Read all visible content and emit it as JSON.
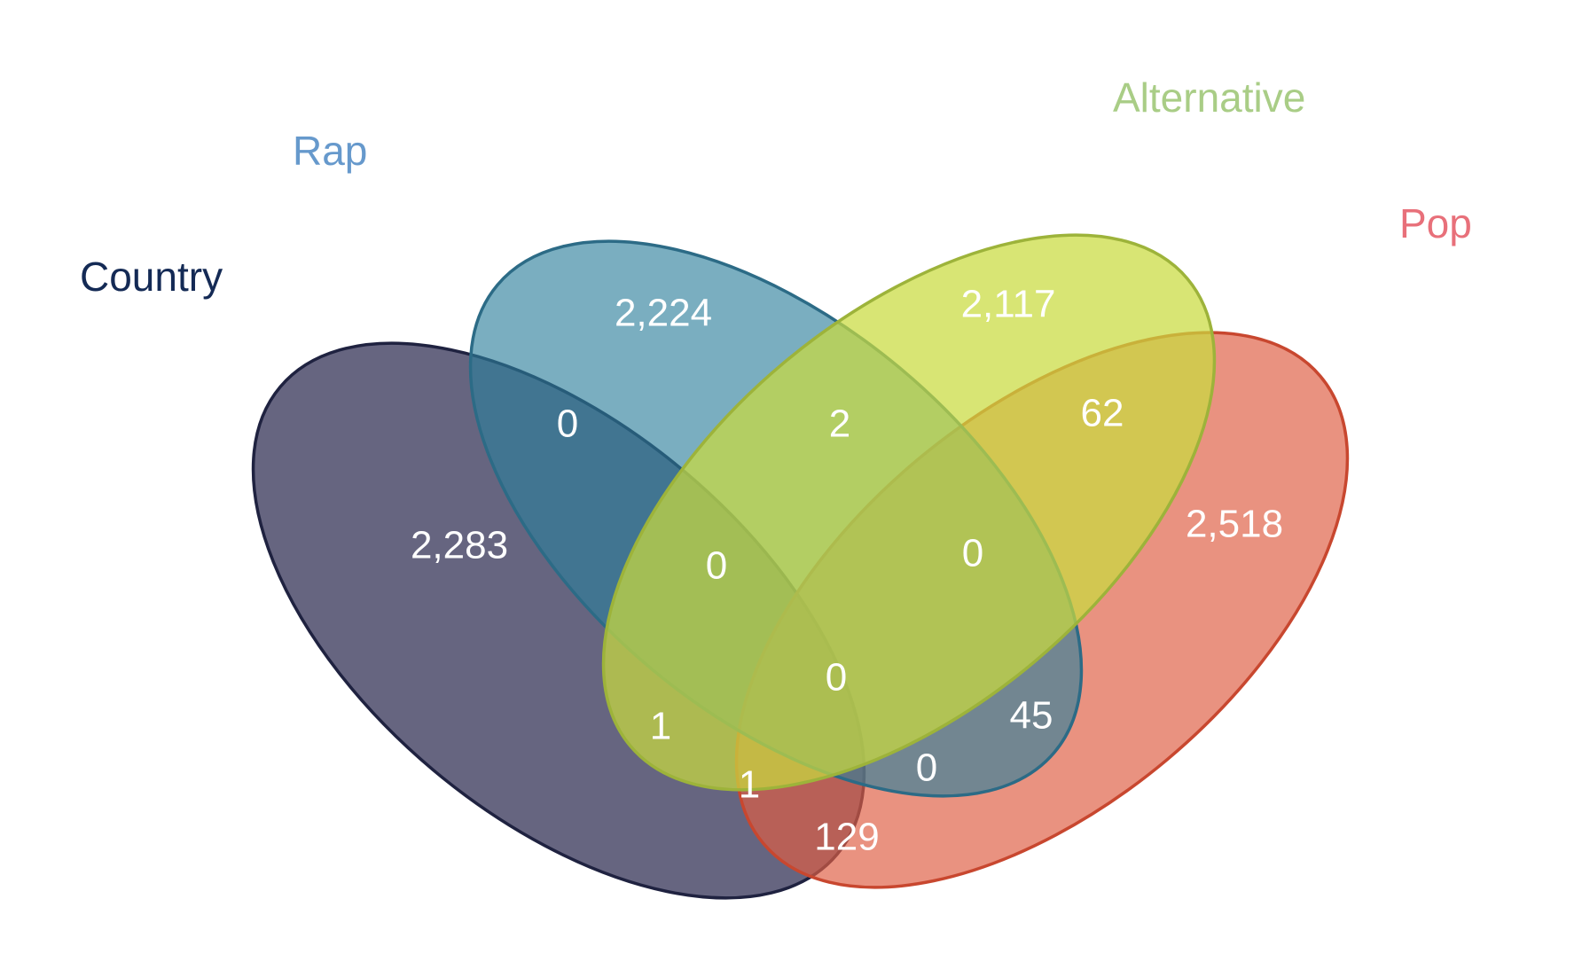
{
  "chart_data": {
    "type": "venn",
    "sets": [
      {
        "key": "country",
        "name": "Country",
        "color": "#142a55",
        "fill": "#25244a",
        "stroke": "#1f2240"
      },
      {
        "key": "rap",
        "name": "Rap",
        "color": "#6699cc",
        "fill": "#2d7e9c",
        "stroke": "#2c6b86"
      },
      {
        "key": "alternative",
        "name": "Alternative",
        "color": "#a9cd86",
        "fill": "#c9db3f",
        "stroke": "#9db33a"
      },
      {
        "key": "pop",
        "name": "Pop",
        "color": "#e8707a",
        "fill": "#df5f44",
        "stroke": "#c8472f"
      }
    ],
    "regions": [
      {
        "sets": [
          "country"
        ],
        "value": "2,283"
      },
      {
        "sets": [
          "rap"
        ],
        "value": "2,224"
      },
      {
        "sets": [
          "alternative"
        ],
        "value": "2,117"
      },
      {
        "sets": [
          "pop"
        ],
        "value": "2,518"
      },
      {
        "sets": [
          "country",
          "rap"
        ],
        "value": "0"
      },
      {
        "sets": [
          "rap",
          "alternative"
        ],
        "value": "2"
      },
      {
        "sets": [
          "alternative",
          "pop"
        ],
        "value": "62"
      },
      {
        "sets": [
          "country",
          "rap",
          "alternative"
        ],
        "value": "0"
      },
      {
        "sets": [
          "rap",
          "alternative",
          "pop"
        ],
        "value": "0"
      },
      {
        "sets": [
          "country",
          "rap",
          "alternative",
          "pop"
        ],
        "value": "0"
      },
      {
        "sets": [
          "country",
          "alternative"
        ],
        "value": "1"
      },
      {
        "sets": [
          "rap",
          "pop"
        ],
        "value": "45"
      },
      {
        "sets": [
          "country",
          "alternative",
          "pop"
        ],
        "value": "1"
      },
      {
        "sets": [
          "country",
          "rap",
          "pop"
        ],
        "value": "0"
      },
      {
        "sets": [
          "country",
          "pop"
        ],
        "value": "129"
      }
    ]
  }
}
